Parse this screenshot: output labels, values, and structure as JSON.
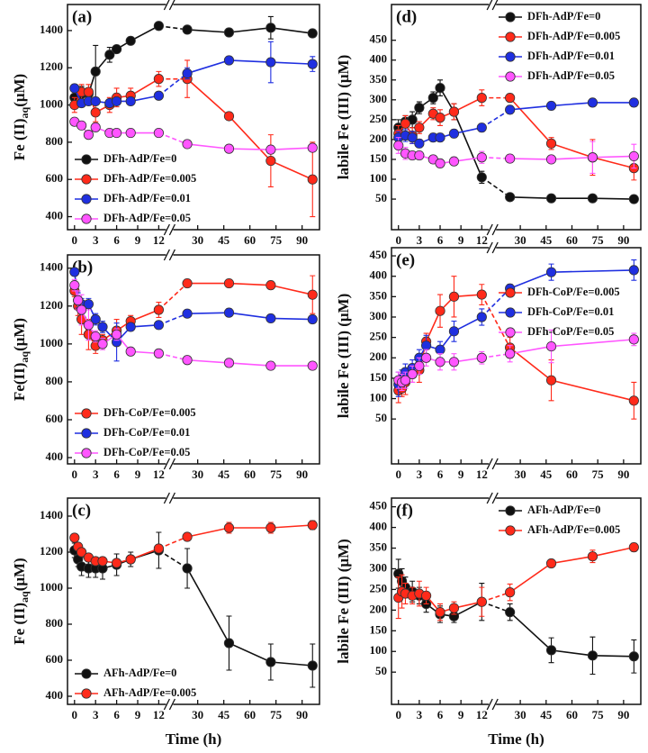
{
  "chart_data": [
    {
      "type": "line",
      "label": "(a)",
      "ylabel": "Fe (II)",
      "ylabel_sub": "aq",
      "ylabel_unit": "(μM)",
      "x": [
        0,
        1,
        2,
        3,
        5,
        6,
        8,
        12,
        24,
        48,
        72,
        96
      ],
      "xlim": [
        -1,
        100
      ],
      "x_break": [
        13,
        16
      ],
      "xticks": [
        0,
        3,
        6,
        9,
        12,
        30,
        45,
        60,
        75,
        90
      ],
      "ylim": [
        330,
        1540
      ],
      "yticks": [
        400,
        600,
        800,
        1000,
        1200,
        1400
      ],
      "legend": "lower left",
      "series": [
        {
          "name": "DFh-AdP/Fe=0",
          "color": "#111111",
          "values": [
            1040,
            1060,
            1060,
            1180,
            1270,
            1300,
            1345,
            1425,
            1405,
            1390,
            1415,
            1385
          ],
          "errors": [
            30,
            40,
            30,
            140,
            40,
            20,
            20,
            10,
            20,
            20,
            60,
            20
          ]
        },
        {
          "name": "DFh-AdP/Fe=0.005",
          "color": "#ff2a1a",
          "values": [
            1000,
            1070,
            1070,
            960,
            1000,
            1040,
            1050,
            1140,
            1140,
            940,
            700,
            600
          ],
          "errors": [
            40,
            40,
            40,
            50,
            40,
            50,
            40,
            40,
            100,
            20,
            140,
            200
          ]
        },
        {
          "name": "DFh-AdP/Fe=0.01",
          "color": "#1f2fe0",
          "values": [
            1090,
            1010,
            1020,
            1020,
            1010,
            1020,
            1020,
            1050,
            1170,
            1240,
            1230,
            1220
          ],
          "errors": [
            20,
            20,
            20,
            20,
            20,
            20,
            20,
            20,
            30,
            20,
            110,
            40
          ]
        },
        {
          "name": "DFh-AdP/Fe=0.05",
          "color": "#ff55ff",
          "values": [
            910,
            890,
            840,
            880,
            850,
            850,
            850,
            850,
            790,
            765,
            760,
            770
          ],
          "errors": [
            20,
            20,
            20,
            20,
            20,
            20,
            20,
            20,
            20,
            20,
            20,
            20
          ]
        }
      ]
    },
    {
      "type": "line",
      "label": "(b)",
      "ylabel": "Fe(II)",
      "ylabel_sub": "aq",
      "ylabel_unit": "(μM)",
      "x": [
        0,
        0.5,
        1,
        2,
        3,
        4,
        6,
        8,
        12,
        24,
        48,
        72,
        96
      ],
      "xlim": [
        -1,
        100
      ],
      "x_break": [
        13,
        16
      ],
      "xticks": [
        0,
        3,
        6,
        9,
        12,
        30,
        45,
        60,
        75,
        90
      ],
      "ylim": [
        367,
        1470
      ],
      "yticks": [
        400,
        600,
        800,
        1000,
        1200,
        1400
      ],
      "legend": "lower left",
      "series": [
        {
          "name": "DFh-CoP/Fe=0.005",
          "color": "#ff2a1a",
          "values": [
            1280,
            1200,
            1130,
            1050,
            990,
            1020,
            1070,
            1120,
            1180,
            1320,
            1320,
            1310,
            1260
          ],
          "errors": [
            30,
            50,
            80,
            80,
            40,
            30,
            60,
            30,
            40,
            20,
            20,
            20,
            100
          ]
        },
        {
          "name": "DFh-CoP/Fe=0.01",
          "color": "#1f2fe0",
          "values": [
            1380,
            1230,
            1210,
            1210,
            1130,
            1090,
            1010,
            1090,
            1100,
            1160,
            1165,
            1135,
            1130
          ],
          "errors": [
            20,
            40,
            30,
            30,
            30,
            30,
            100,
            20,
            20,
            20,
            20,
            20,
            20
          ]
        },
        {
          "name": "DFh-CoP/Fe=0.05",
          "color": "#ff55ff",
          "values": [
            1310,
            1230,
            1180,
            1100,
            1040,
            1000,
            1050,
            960,
            950,
            915,
            900,
            885,
            885
          ],
          "errors": [
            30,
            50,
            80,
            80,
            30,
            30,
            30,
            20,
            20,
            20,
            20,
            20,
            20
          ]
        }
      ]
    },
    {
      "type": "line",
      "label": "(c)",
      "ylabel": "Fe (II)",
      "ylabel_sub": "aq",
      "ylabel_unit": "(μM)",
      "xlabel": "Time (h)",
      "x": [
        0,
        0.5,
        1,
        2,
        3,
        4,
        6,
        8,
        12,
        24,
        48,
        72,
        96
      ],
      "xlim": [
        -1,
        100
      ],
      "x_break": [
        13,
        16
      ],
      "xticks": [
        0,
        3,
        6,
        9,
        12,
        30,
        45,
        60,
        75,
        90
      ],
      "ylim": [
        355,
        1500
      ],
      "yticks": [
        400,
        600,
        800,
        1000,
        1200,
        1400
      ],
      "legend": "lower left",
      "series": [
        {
          "name": "AFh-AdP/Fe=0",
          "color": "#111111",
          "values": [
            1210,
            1160,
            1120,
            1110,
            1110,
            1110,
            1130,
            1160,
            1210,
            1110,
            695,
            590,
            570
          ],
          "errors": [
            40,
            40,
            50,
            50,
            50,
            60,
            60,
            40,
            100,
            110,
            150,
            100,
            120
          ]
        },
        {
          "name": "AFh-AdP/Fe=0.005",
          "color": "#ff2a1a",
          "values": [
            1280,
            1230,
            1200,
            1170,
            1150,
            1150,
            1140,
            1160,
            1220,
            1285,
            1335,
            1335,
            1350
          ],
          "errors": [
            20,
            20,
            20,
            20,
            20,
            20,
            20,
            20,
            20,
            15,
            30,
            30,
            25
          ]
        }
      ]
    },
    {
      "type": "line",
      "label": "(d)",
      "ylabel": "labile Fe (III) (μM)",
      "x": [
        0,
        1,
        2,
        3,
        5,
        6,
        8,
        12,
        24,
        48,
        72,
        96
      ],
      "xlim": [
        -1,
        100
      ],
      "x_break": [
        13,
        16
      ],
      "xticks": [
        0,
        3,
        6,
        9,
        12,
        30,
        45,
        60,
        75,
        90
      ],
      "ylim": [
        -27,
        540
      ],
      "yticks": [
        50,
        100,
        150,
        200,
        250,
        300,
        350,
        400,
        450
      ],
      "legend": "upper right",
      "series": [
        {
          "name": "DFh-AdP/Fe=0",
          "color": "#111111",
          "values": [
            230,
            245,
            250,
            280,
            305,
            330,
            270,
            105,
            55,
            52,
            52,
            50
          ],
          "errors": [
            20,
            15,
            20,
            15,
            15,
            20,
            20,
            15,
            8,
            5,
            5,
            5
          ]
        },
        {
          "name": "DFh-AdP/Fe=0.005",
          "color": "#ff2a1a",
          "values": [
            215,
            240,
            210,
            230,
            265,
            255,
            270,
            305,
            305,
            190,
            155,
            128
          ],
          "errors": [
            20,
            20,
            20,
            15,
            15,
            20,
            20,
            20,
            10,
            15,
            45,
            30
          ]
        },
        {
          "name": "DFh-AdP/Fe=0.01",
          "color": "#1f2fe0",
          "values": [
            205,
            210,
            205,
            190,
            205,
            205,
            215,
            230,
            275,
            285,
            293,
            293
          ],
          "errors": [
            15,
            15,
            15,
            10,
            10,
            10,
            10,
            10,
            10,
            10,
            8,
            10
          ]
        },
        {
          "name": "DFh-AdP/Fe=0.05",
          "color": "#ff55ff",
          "values": [
            185,
            165,
            160,
            160,
            150,
            140,
            145,
            155,
            152,
            150,
            155,
            158
          ],
          "errors": [
            20,
            15,
            10,
            10,
            10,
            10,
            10,
            15,
            10,
            8,
            40,
            30
          ]
        }
      ]
    },
    {
      "type": "line",
      "label": "(e)",
      "ylabel": "labile Fe (III) (μM)",
      "x": [
        0,
        0.5,
        1,
        2,
        3,
        4,
        6,
        8,
        12,
        24,
        48,
        96
      ],
      "xlim": [
        -1,
        100
      ],
      "x_break": [
        13,
        16
      ],
      "xticks": [
        0,
        3,
        6,
        9,
        12,
        30,
        45,
        60,
        75,
        90
      ],
      "ylim": [
        -60,
        470
      ],
      "yticks": [
        50,
        100,
        150,
        200,
        250,
        300,
        350,
        400,
        450
      ],
      "legend": "center right",
      "series": [
        {
          "name": "DFh-CoP/Fe=0.005",
          "color": "#ff2a1a",
          "values": [
            120,
            125,
            140,
            160,
            170,
            240,
            315,
            350,
            355,
            225,
            145,
            95
          ],
          "errors": [
            30,
            20,
            30,
            20,
            30,
            20,
            40,
            50,
            25,
            25,
            50,
            45
          ]
        },
        {
          "name": "DFh-CoP/Fe=0.01",
          "color": "#1f2fe0",
          "values": [
            135,
            150,
            165,
            175,
            200,
            230,
            220,
            265,
            300,
            370,
            410,
            415
          ],
          "errors": [
            30,
            20,
            20,
            20,
            20,
            25,
            20,
            25,
            20,
            10,
            20,
            25
          ]
        },
        {
          "name": "DFh-CoP/Fe=0.05",
          "color": "#ff55ff",
          "values": [
            145,
            140,
            145,
            160,
            180,
            200,
            190,
            190,
            200,
            210,
            228,
            245
          ],
          "errors": [
            20,
            20,
            20,
            20,
            20,
            20,
            20,
            20,
            15,
            20,
            40,
            15
          ]
        }
      ]
    },
    {
      "type": "line",
      "label": "(f)",
      "ylabel": "labile Fe (III) (μM)",
      "xlabel": "Time (h)",
      "x": [
        0,
        0.5,
        1,
        2,
        3,
        4,
        6,
        8,
        12,
        24,
        48,
        72,
        96
      ],
      "xlim": [
        -1,
        100
      ],
      "x_break": [
        13,
        16
      ],
      "xticks": [
        0,
        3,
        6,
        9,
        12,
        30,
        45,
        60,
        75,
        90
      ],
      "ylim": [
        -28,
        471
      ],
      "yticks": [
        50,
        100,
        150,
        200,
        250,
        300,
        350,
        400,
        450
      ],
      "legend": "upper right",
      "series": [
        {
          "name": "AFh-AdP/Fe=0",
          "color": "#111111",
          "values": [
            288,
            270,
            255,
            245,
            235,
            215,
            190,
            185,
            220,
            195,
            103,
            90,
            88
          ],
          "errors": [
            35,
            30,
            25,
            25,
            20,
            20,
            20,
            15,
            45,
            20,
            30,
            45,
            40
          ]
        },
        {
          "name": "AFh-AdP/Fe=0.005",
          "color": "#ff2a1a",
          "values": [
            230,
            245,
            240,
            235,
            240,
            235,
            195,
            205,
            220,
            243,
            313,
            330,
            352
          ],
          "errors": [
            50,
            40,
            25,
            20,
            30,
            20,
            20,
            15,
            35,
            20,
            8,
            15,
            10
          ]
        }
      ]
    }
  ]
}
